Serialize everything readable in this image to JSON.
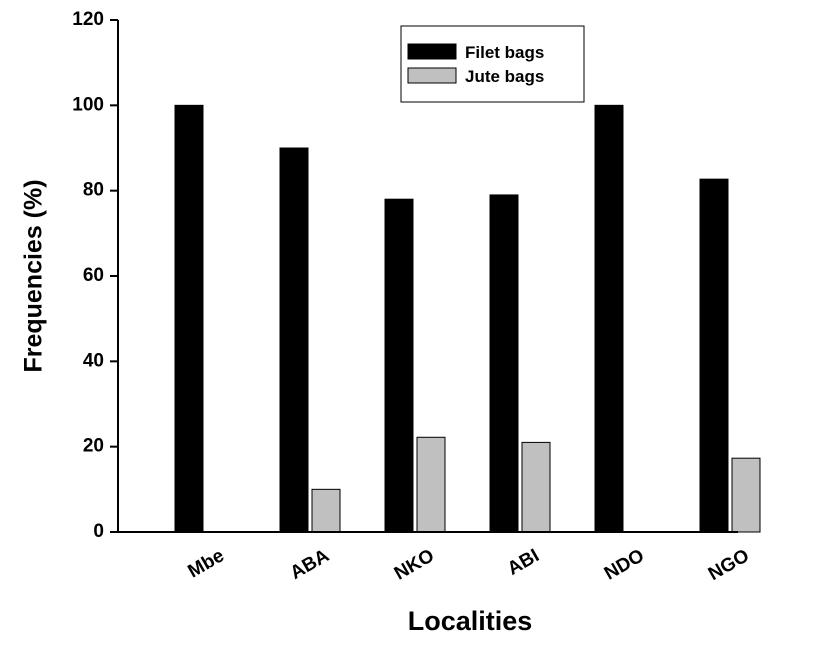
{
  "chart_data": {
    "type": "bar",
    "categories": [
      "Mbe",
      "ABA",
      "NKO",
      "ABI",
      "NDO",
      "NGO"
    ],
    "series": [
      {
        "name": "Filet bags",
        "values": [
          100,
          90,
          78,
          79,
          100,
          82.7
        ],
        "color": "#000000"
      },
      {
        "name": "Jute bags",
        "values": [
          0,
          10,
          22.2,
          21,
          0,
          17.3
        ],
        "color": "#c0c0c0"
      }
    ],
    "xlabel": "Localities",
    "ylabel": "Frequencies (%)",
    "ylim": [
      0,
      120
    ],
    "yticks": [
      "0",
      "20",
      "40",
      "60",
      "80",
      "100",
      "120"
    ],
    "grid": false,
    "legend_position": "top-center"
  }
}
